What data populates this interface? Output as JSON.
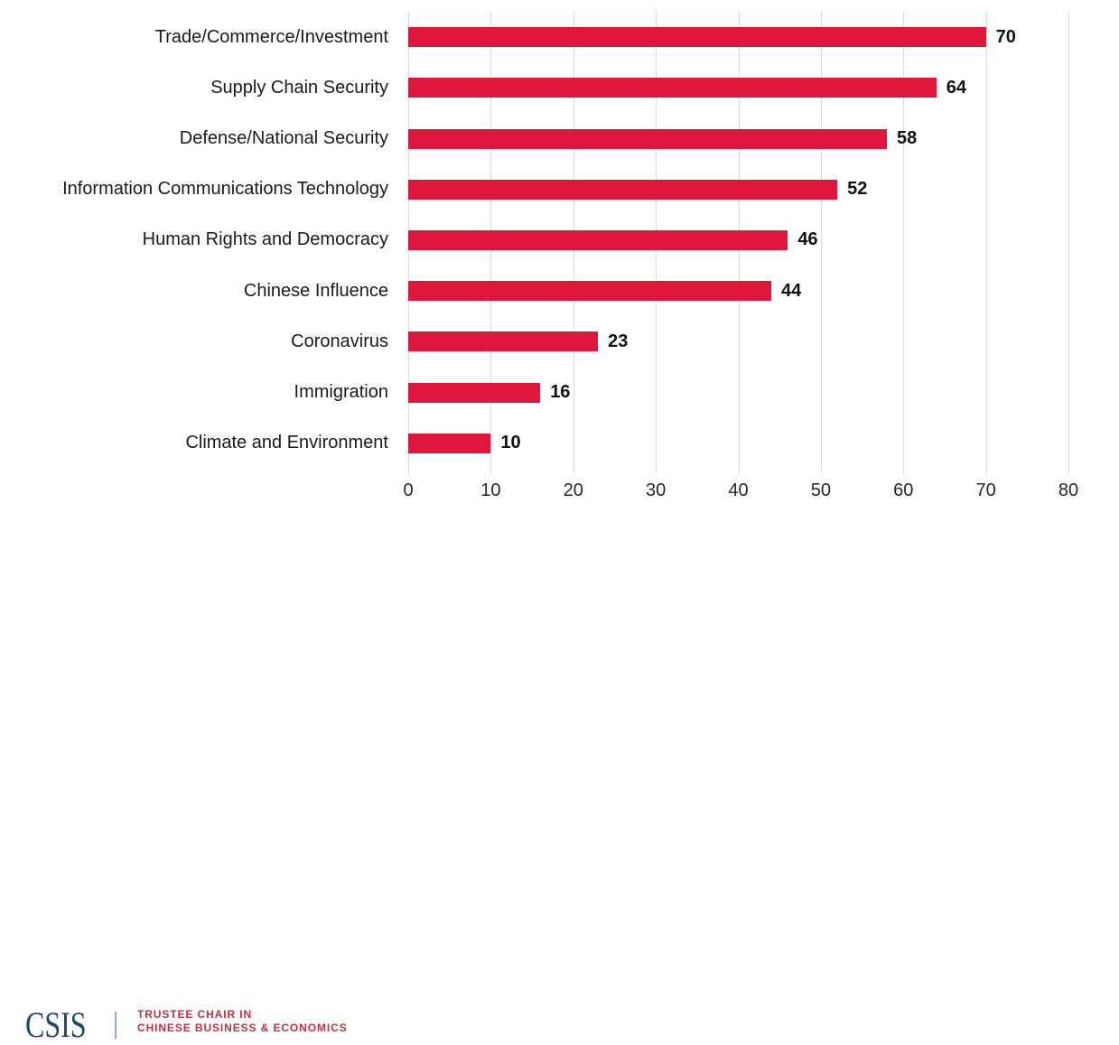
{
  "chart_data": {
    "type": "bar",
    "orientation": "horizontal",
    "title": "",
    "xlabel": "",
    "ylabel": "",
    "categories": [
      "Trade/Commerce/Investment",
      "Supply Chain Security",
      "Defense/National Security",
      "Information Communications Technology",
      "Human Rights and Democracy",
      "Chinese Influence",
      "Coronavirus",
      "Immigration",
      "Climate and Environment"
    ],
    "values": [
      70,
      64,
      58,
      52,
      46,
      44,
      23,
      16,
      10
    ],
    "value_labels": [
      "70",
      "64",
      "58",
      "52",
      "46",
      "44",
      "23",
      "16",
      "10"
    ],
    "x_ticks": [
      0,
      10,
      20,
      30,
      40,
      50,
      60,
      70,
      80
    ],
    "x_tick_labels": [
      "0",
      "10",
      "20",
      "30",
      "40",
      "50",
      "60",
      "70",
      "80"
    ],
    "xlim": [
      0,
      80
    ],
    "grid": true,
    "legend": false,
    "bar_color": "#e0173c",
    "grid_color": "#d9d9d9",
    "category_label_color": "#1a1a1a",
    "value_label_color": "#111111",
    "tick_label_color": "#262626"
  },
  "footer": {
    "logo_text": "CSIS",
    "program_line1": "TRUSTEE CHAIR IN",
    "program_line2": "CHINESE BUSINESS & ECONOMICS",
    "logo_color": "#1e4a68",
    "program_color": "#c22f40",
    "divider_color": "#8facc4"
  }
}
